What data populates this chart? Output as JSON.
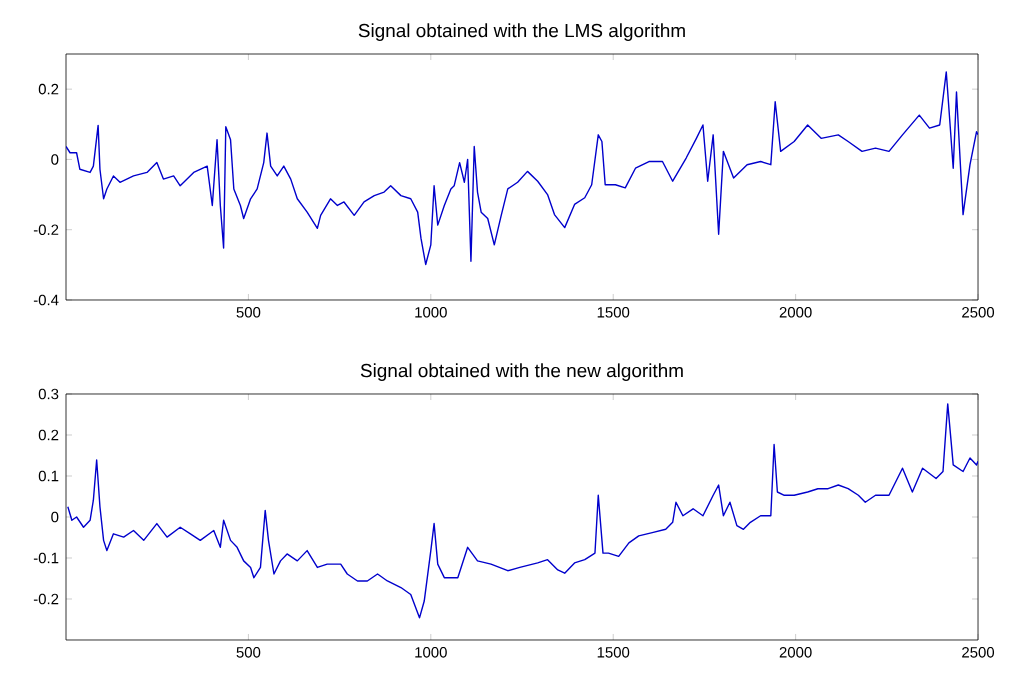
{
  "chart_data": [
    {
      "type": "line",
      "title": "Signal obtained with the LMS algorithm",
      "xlim": [
        0,
        2500
      ],
      "ylim": [
        -0.4,
        0.3
      ],
      "xticks": [
        500,
        1000,
        1500,
        2000,
        2500
      ],
      "yticks": [
        -0.4,
        -0.2,
        0,
        0.2
      ],
      "grid": false,
      "marker": "none",
      "line_style": "solid",
      "x": [
        0,
        11,
        29,
        38,
        66,
        75,
        88,
        93,
        103,
        112,
        130,
        148,
        185,
        222,
        249,
        267,
        295,
        313,
        350,
        387,
        401,
        414,
        423,
        432,
        438,
        451,
        460,
        478,
        487,
        506,
        524,
        542,
        551,
        561,
        579,
        597,
        616,
        634,
        661,
        689,
        698,
        725,
        744,
        762,
        790,
        817,
        845,
        872,
        890,
        918,
        945,
        964,
        973,
        986,
        1000,
        1009,
        1019,
        1037,
        1055,
        1064,
        1079,
        1092,
        1101,
        1110,
        1119,
        1128,
        1138,
        1156,
        1174,
        1193,
        1211,
        1238,
        1265,
        1293,
        1320,
        1339,
        1367,
        1394,
        1422,
        1441,
        1459,
        1469,
        1478,
        1506,
        1533,
        1561,
        1598,
        1635,
        1663,
        1700,
        1728,
        1746,
        1759,
        1774,
        1789,
        1802,
        1830,
        1867,
        1904,
        1932,
        1944,
        1959,
        1996,
        2033,
        2070,
        2117,
        2144,
        2182,
        2219,
        2256,
        2293,
        2339,
        2367,
        2395,
        2413,
        2432,
        2441,
        2459,
        2478,
        2496,
        2500
      ],
      "series": [
        {
          "color": "#0000cc",
          "values": [
            0.037,
            0.019,
            0.019,
            -0.028,
            -0.037,
            -0.019,
            0.097,
            -0.028,
            -0.112,
            -0.084,
            -0.047,
            -0.065,
            -0.047,
            -0.037,
            -0.009,
            -0.056,
            -0.047,
            -0.075,
            -0.037,
            -0.019,
            -0.131,
            0.056,
            -0.131,
            -0.252,
            0.093,
            0.056,
            -0.084,
            -0.131,
            -0.168,
            -0.112,
            -0.084,
            -0.009,
            0.075,
            -0.019,
            -0.047,
            -0.019,
            -0.056,
            -0.112,
            -0.15,
            -0.196,
            -0.159,
            -0.112,
            -0.131,
            -0.121,
            -0.159,
            -0.121,
            -0.103,
            -0.093,
            -0.075,
            -0.103,
            -0.112,
            -0.15,
            -0.224,
            -0.299,
            -0.243,
            -0.075,
            -0.187,
            -0.131,
            -0.084,
            -0.075,
            -0.009,
            -0.065,
            0,
            -0.29,
            0.037,
            -0.093,
            -0.15,
            -0.168,
            -0.243,
            -0.159,
            -0.084,
            -0.065,
            -0.034,
            -0.062,
            -0.1,
            -0.157,
            -0.194,
            -0.128,
            -0.109,
            -0.072,
            0.07,
            0.051,
            -0.072,
            -0.072,
            -0.081,
            -0.025,
            -0.006,
            -0.006,
            -0.062,
            0.004,
            0.06,
            0.098,
            -0.062,
            0.07,
            -0.213,
            0.023,
            -0.053,
            -0.015,
            -0.006,
            -0.015,
            0.164,
            0.023,
            0.051,
            0.098,
            0.06,
            0.07,
            0.051,
            0.023,
            0.032,
            0.023,
            0.07,
            0.126,
            0.089,
            0.098,
            0.249,
            -0.025,
            0.192,
            -0.157,
            -0.015,
            0.079,
            0.07
          ]
        }
      ]
    },
    {
      "type": "line",
      "title": "Signal obtained with the new algorithm",
      "xlim": [
        0,
        2500
      ],
      "ylim": [
        -0.3,
        0.3
      ],
      "xticks": [
        500,
        1000,
        1500,
        2000,
        2500
      ],
      "yticks": [
        -0.2,
        -0.1,
        0,
        0.1,
        0.2,
        0.3
      ],
      "grid": false,
      "marker": "none",
      "line_style": "solid",
      "x": [
        5,
        16,
        29,
        48,
        66,
        75,
        84,
        93,
        103,
        112,
        130,
        158,
        185,
        213,
        249,
        277,
        313,
        341,
        368,
        405,
        423,
        432,
        451,
        469,
        487,
        506,
        515,
        533,
        546,
        555,
        570,
        588,
        606,
        634,
        661,
        689,
        716,
        753,
        771,
        799,
        826,
        854,
        881,
        918,
        945,
        969,
        982,
        1000,
        1009,
        1019,
        1037,
        1074,
        1101,
        1128,
        1165,
        1211,
        1244,
        1293,
        1320,
        1348,
        1367,
        1394,
        1422,
        1450,
        1459,
        1472,
        1487,
        1515,
        1543,
        1570,
        1607,
        1644,
        1663,
        1672,
        1691,
        1719,
        1746,
        1774,
        1789,
        1802,
        1820,
        1839,
        1857,
        1876,
        1904,
        1932,
        1941,
        1950,
        1969,
        1996,
        2033,
        2061,
        2089,
        2117,
        2144,
        2172,
        2191,
        2219,
        2256,
        2293,
        2320,
        2348,
        2385,
        2404,
        2417,
        2432,
        2459,
        2478,
        2496,
        2500
      ],
      "series": [
        {
          "color": "#0000cc",
          "values": [
            0.025,
            -0.008,
            0,
            -0.025,
            -0.008,
            0.041,
            0.139,
            0.025,
            -0.057,
            -0.082,
            -0.041,
            -0.049,
            -0.033,
            -0.057,
            -0.016,
            -0.049,
            -0.025,
            -0.041,
            -0.057,
            -0.033,
            -0.074,
            -0.008,
            -0.057,
            -0.074,
            -0.107,
            -0.123,
            -0.148,
            -0.123,
            0.016,
            -0.057,
            -0.139,
            -0.107,
            -0.09,
            -0.107,
            -0.082,
            -0.123,
            -0.115,
            -0.115,
            -0.139,
            -0.156,
            -0.156,
            -0.139,
            -0.156,
            -0.172,
            -0.189,
            -0.246,
            -0.205,
            -0.082,
            -0.016,
            -0.115,
            -0.148,
            -0.148,
            -0.074,
            -0.107,
            -0.115,
            -0.131,
            -0.123,
            -0.112,
            -0.104,
            -0.129,
            -0.137,
            -0.112,
            -0.104,
            -0.088,
            0.053,
            -0.088,
            -0.088,
            -0.096,
            -0.063,
            -0.046,
            -0.038,
            -0.03,
            -0.013,
            0.036,
            0.003,
            0.02,
            0.003,
            0.053,
            0.078,
            0.003,
            0.036,
            -0.021,
            -0.03,
            -0.013,
            0.003,
            0.003,
            0.177,
            0.061,
            0.053,
            0.053,
            0.061,
            0.069,
            0.069,
            0.078,
            0.069,
            0.053,
            0.036,
            0.053,
            0.053,
            0.119,
            0.061,
            0.119,
            0.094,
            0.111,
            0.276,
            0.127,
            0.111,
            0.144,
            0.127,
            0.136
          ]
        }
      ]
    }
  ]
}
